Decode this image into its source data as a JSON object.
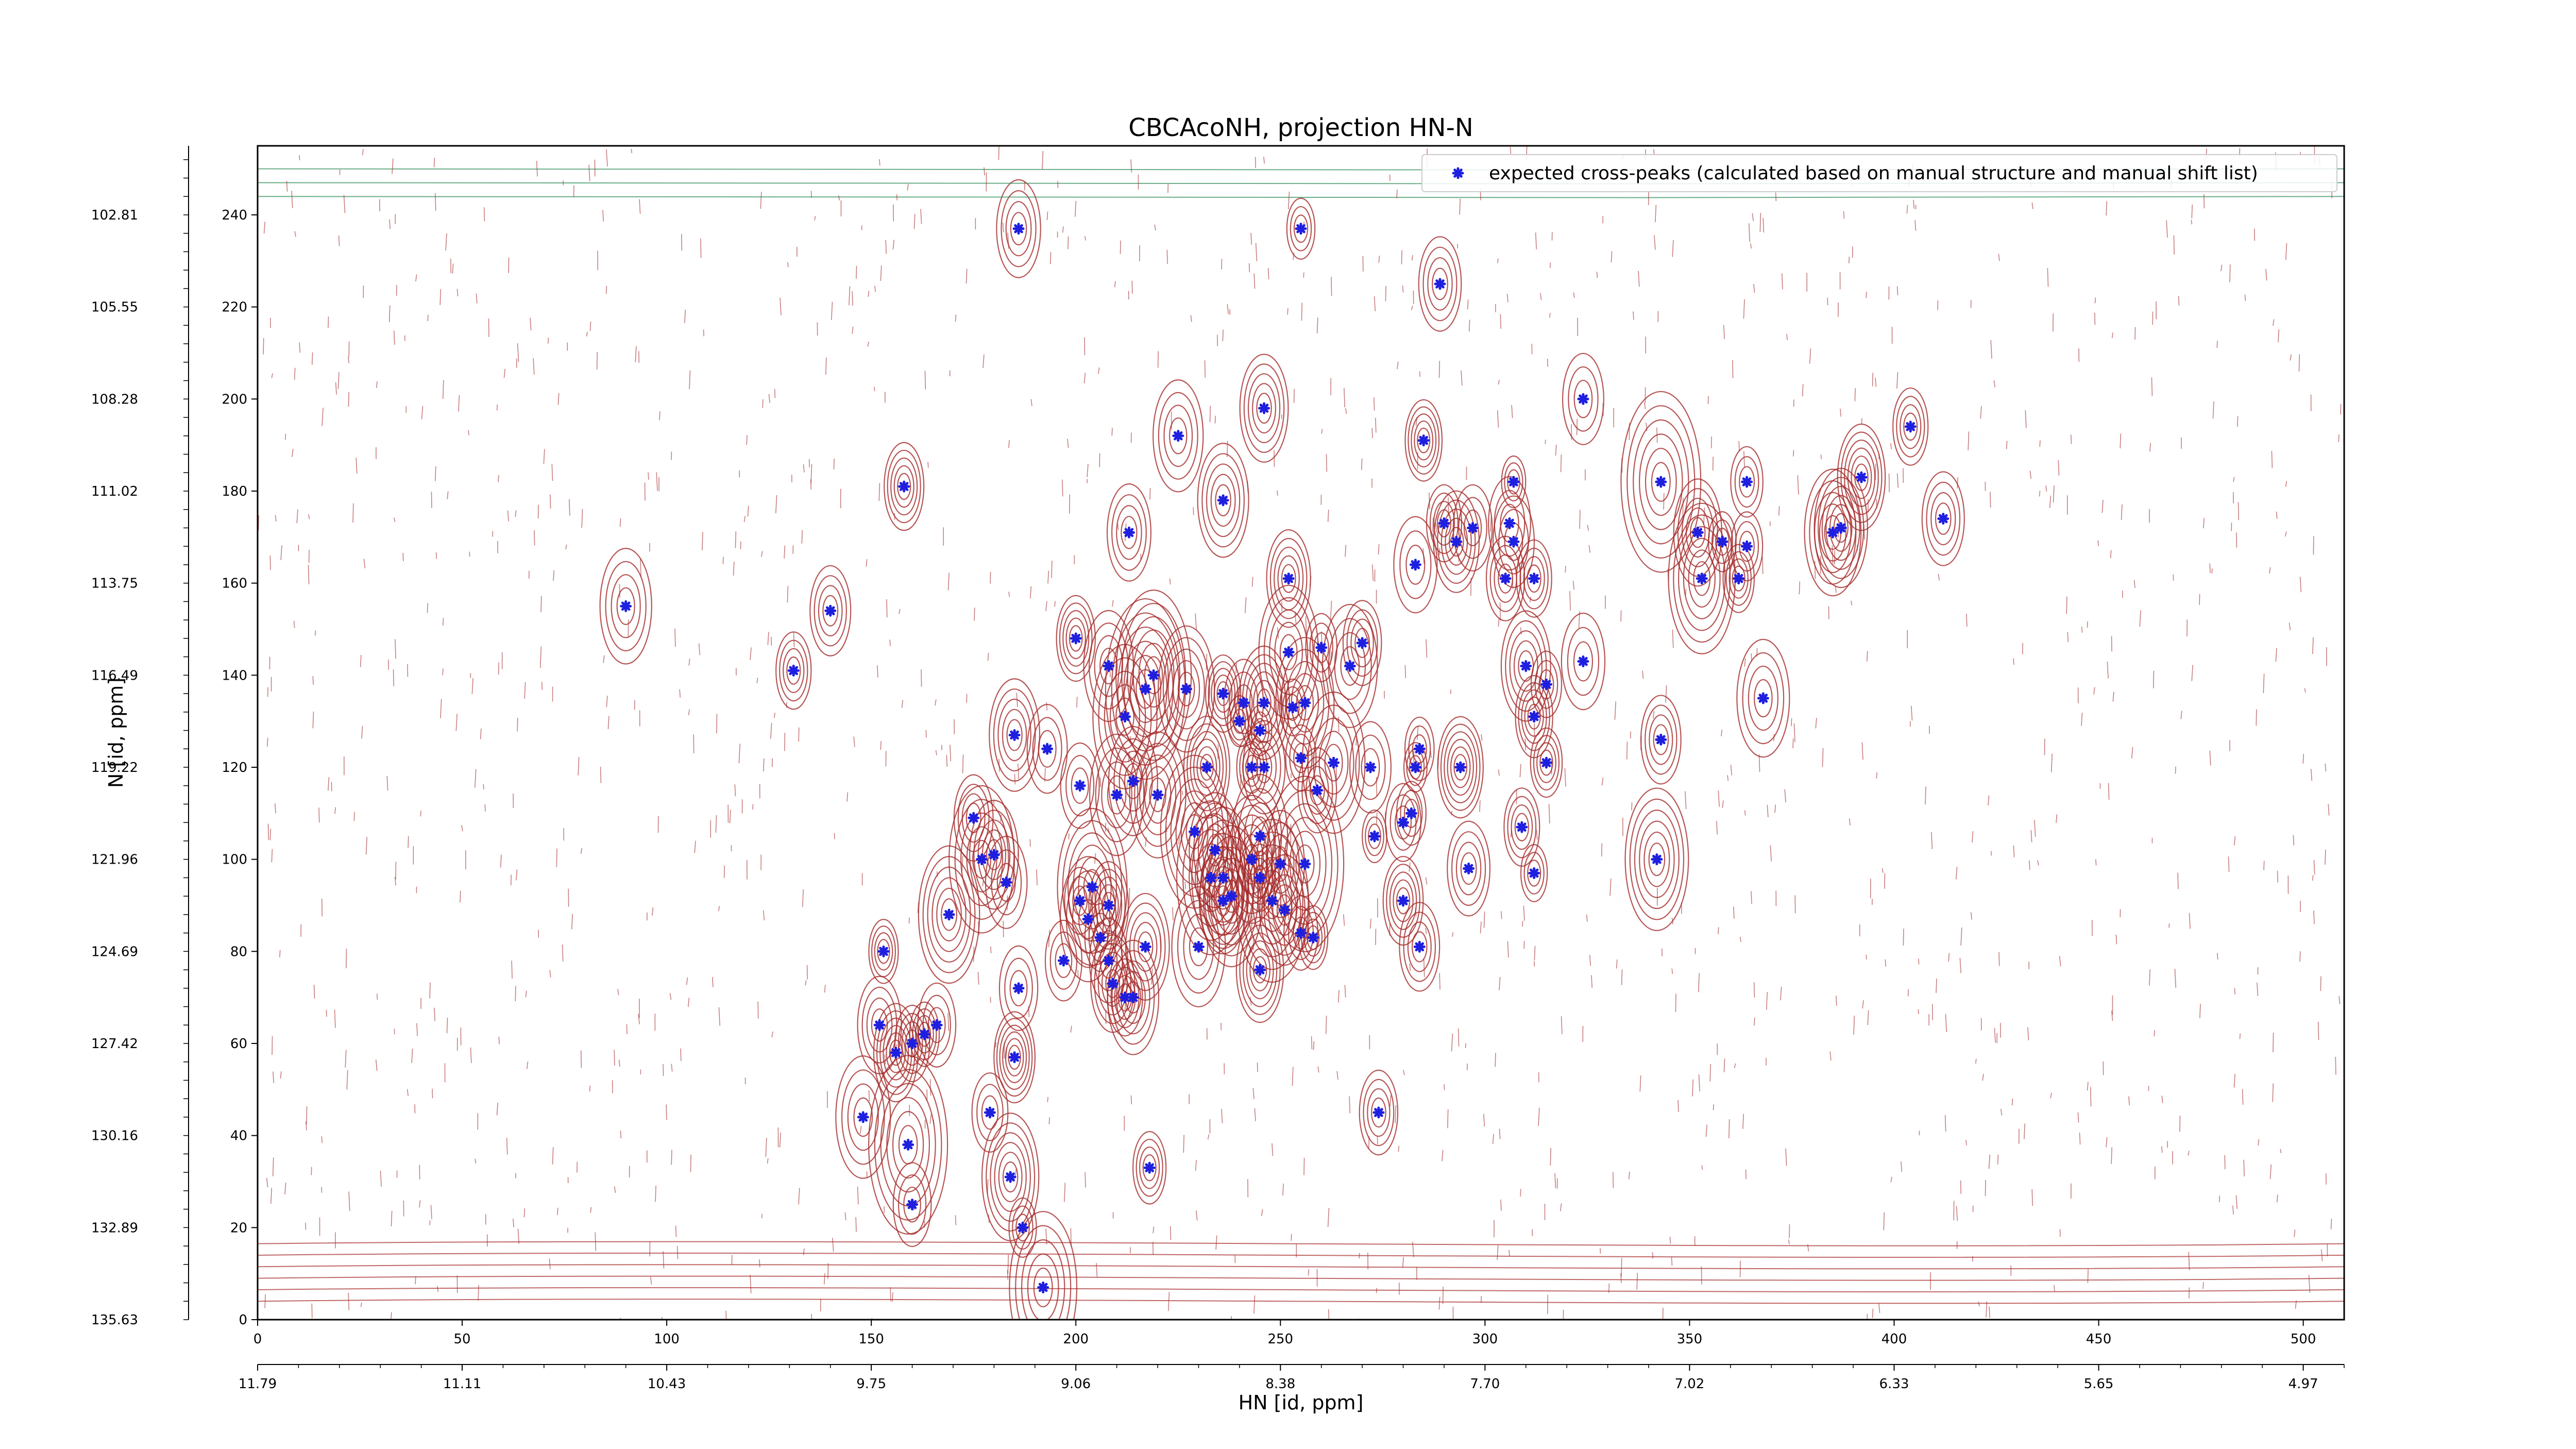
{
  "chart_data": {
    "type": "scatter",
    "title": "CBCAcoNH, projection HN-N",
    "xlabel": "HN [id, ppm]",
    "ylabel": "N [id, ppm]",
    "xlim": [
      0,
      510
    ],
    "ylim": [
      0,
      255
    ],
    "x_ticks": [
      0,
      50,
      100,
      150,
      200,
      250,
      300,
      350,
      400,
      450,
      500
    ],
    "y_ticks": [
      0,
      20,
      40,
      60,
      80,
      100,
      120,
      140,
      160,
      180,
      200,
      220,
      240
    ],
    "x_ppm_labels": [
      "11.79",
      "11.11",
      "10.43",
      "9.75",
      "9.06",
      "8.38",
      "7.70",
      "7.02",
      "6.33",
      "5.65",
      "4.97"
    ],
    "y_ppm_labels": [
      "135.63",
      "132.89",
      "130.16",
      "127.42",
      "124.69",
      "121.96",
      "119.22",
      "116.49",
      "113.75",
      "111.02",
      "108.28",
      "105.55",
      "102.81"
    ],
    "legend": {
      "placement": "top-right",
      "label": "expected cross-peaks (calculated based on manual structure and manual shift list)"
    },
    "colors": {
      "marker": "#1f1fe0",
      "positive_contour": "#a52a2a",
      "negative_contour": "#2e8b57"
    },
    "series": [
      {
        "name": "expected cross-peaks (calculated based on manual structure and manual shift list)",
        "points": [
          [
            186,
            237
          ],
          [
            255,
            237
          ],
          [
            289,
            225
          ],
          [
            324,
            200
          ],
          [
            246,
            198
          ],
          [
            225,
            192
          ],
          [
            285,
            191
          ],
          [
            404,
            194
          ],
          [
            158,
            181
          ],
          [
            236,
            178
          ],
          [
            307,
            182
          ],
          [
            343,
            182
          ],
          [
            364,
            182
          ],
          [
            392,
            183
          ],
          [
            213,
            171
          ],
          [
            252,
            161
          ],
          [
            283,
            164
          ],
          [
            290,
            173
          ],
          [
            293,
            169
          ],
          [
            297,
            172
          ],
          [
            305,
            161
          ],
          [
            306,
            173
          ],
          [
            307,
            169
          ],
          [
            312,
            161
          ],
          [
            352,
            171
          ],
          [
            353,
            161
          ],
          [
            358,
            169
          ],
          [
            362,
            161
          ],
          [
            364,
            168
          ],
          [
            385,
            171
          ],
          [
            387,
            172
          ],
          [
            412,
            174
          ],
          [
            90,
            155
          ],
          [
            140,
            154
          ],
          [
            131,
            141
          ],
          [
            200,
            148
          ],
          [
            208,
            142
          ],
          [
            217,
            137
          ],
          [
            219,
            140
          ],
          [
            227,
            137
          ],
          [
            236,
            136
          ],
          [
            270,
            147
          ],
          [
            260,
            146
          ],
          [
            252,
            145
          ],
          [
            267,
            142
          ],
          [
            315,
            138
          ],
          [
            310,
            142
          ],
          [
            324,
            143
          ],
          [
            368,
            135
          ],
          [
            185,
            127
          ],
          [
            241,
            134
          ],
          [
            246,
            134
          ],
          [
            253,
            133
          ],
          [
            256,
            134
          ],
          [
            212,
            131
          ],
          [
            193,
            124
          ],
          [
            240,
            130
          ],
          [
            245,
            128
          ],
          [
            263,
            121
          ],
          [
            232,
            120
          ],
          [
            243,
            120
          ],
          [
            246,
            120
          ],
          [
            255,
            122
          ],
          [
            284,
            124
          ],
          [
            294,
            120
          ],
          [
            283,
            120
          ],
          [
            312,
            131
          ],
          [
            315,
            121
          ],
          [
            343,
            126
          ],
          [
            201,
            116
          ],
          [
            214,
            117
          ],
          [
            210,
            114
          ],
          [
            220,
            114
          ],
          [
            259,
            115
          ],
          [
            272,
            120
          ],
          [
            273,
            105
          ],
          [
            282,
            110
          ],
          [
            280,
            108
          ],
          [
            175,
            109
          ],
          [
            177,
            100
          ],
          [
            180,
            101
          ],
          [
            183,
            95
          ],
          [
            234,
            102
          ],
          [
            229,
            106
          ],
          [
            245,
            105
          ],
          [
            243,
            100
          ],
          [
            250,
            99
          ],
          [
            256,
            99
          ],
          [
            233,
            96
          ],
          [
            236,
            96
          ],
          [
            245,
            96
          ],
          [
            238,
            92
          ],
          [
            236,
            91
          ],
          [
            248,
            91
          ],
          [
            251,
            89
          ],
          [
            204,
            94
          ],
          [
            201,
            91
          ],
          [
            203,
            87
          ],
          [
            208,
            90
          ],
          [
            280,
            91
          ],
          [
            255,
            84
          ],
          [
            258,
            83
          ],
          [
            169,
            88
          ],
          [
            206,
            83
          ],
          [
            197,
            78
          ],
          [
            208,
            78
          ],
          [
            230,
            81
          ],
          [
            217,
            81
          ],
          [
            245,
            76
          ],
          [
            284,
            81
          ],
          [
            342,
            100
          ],
          [
            312,
            97
          ],
          [
            309,
            107
          ],
          [
            296,
            98
          ],
          [
            153,
            80
          ],
          [
            186,
            72
          ],
          [
            152,
            64
          ],
          [
            156,
            58
          ],
          [
            160,
            60
          ],
          [
            163,
            62
          ],
          [
            166,
            64
          ],
          [
            185,
            57
          ],
          [
            209,
            73
          ],
          [
            212,
            70
          ],
          [
            214,
            70
          ],
          [
            179,
            45
          ],
          [
            159,
            38
          ],
          [
            148,
            44
          ],
          [
            184,
            31
          ],
          [
            187,
            20
          ],
          [
            160,
            25
          ],
          [
            192,
            7
          ],
          [
            274,
            45
          ],
          [
            218,
            33
          ]
        ]
      }
    ]
  }
}
